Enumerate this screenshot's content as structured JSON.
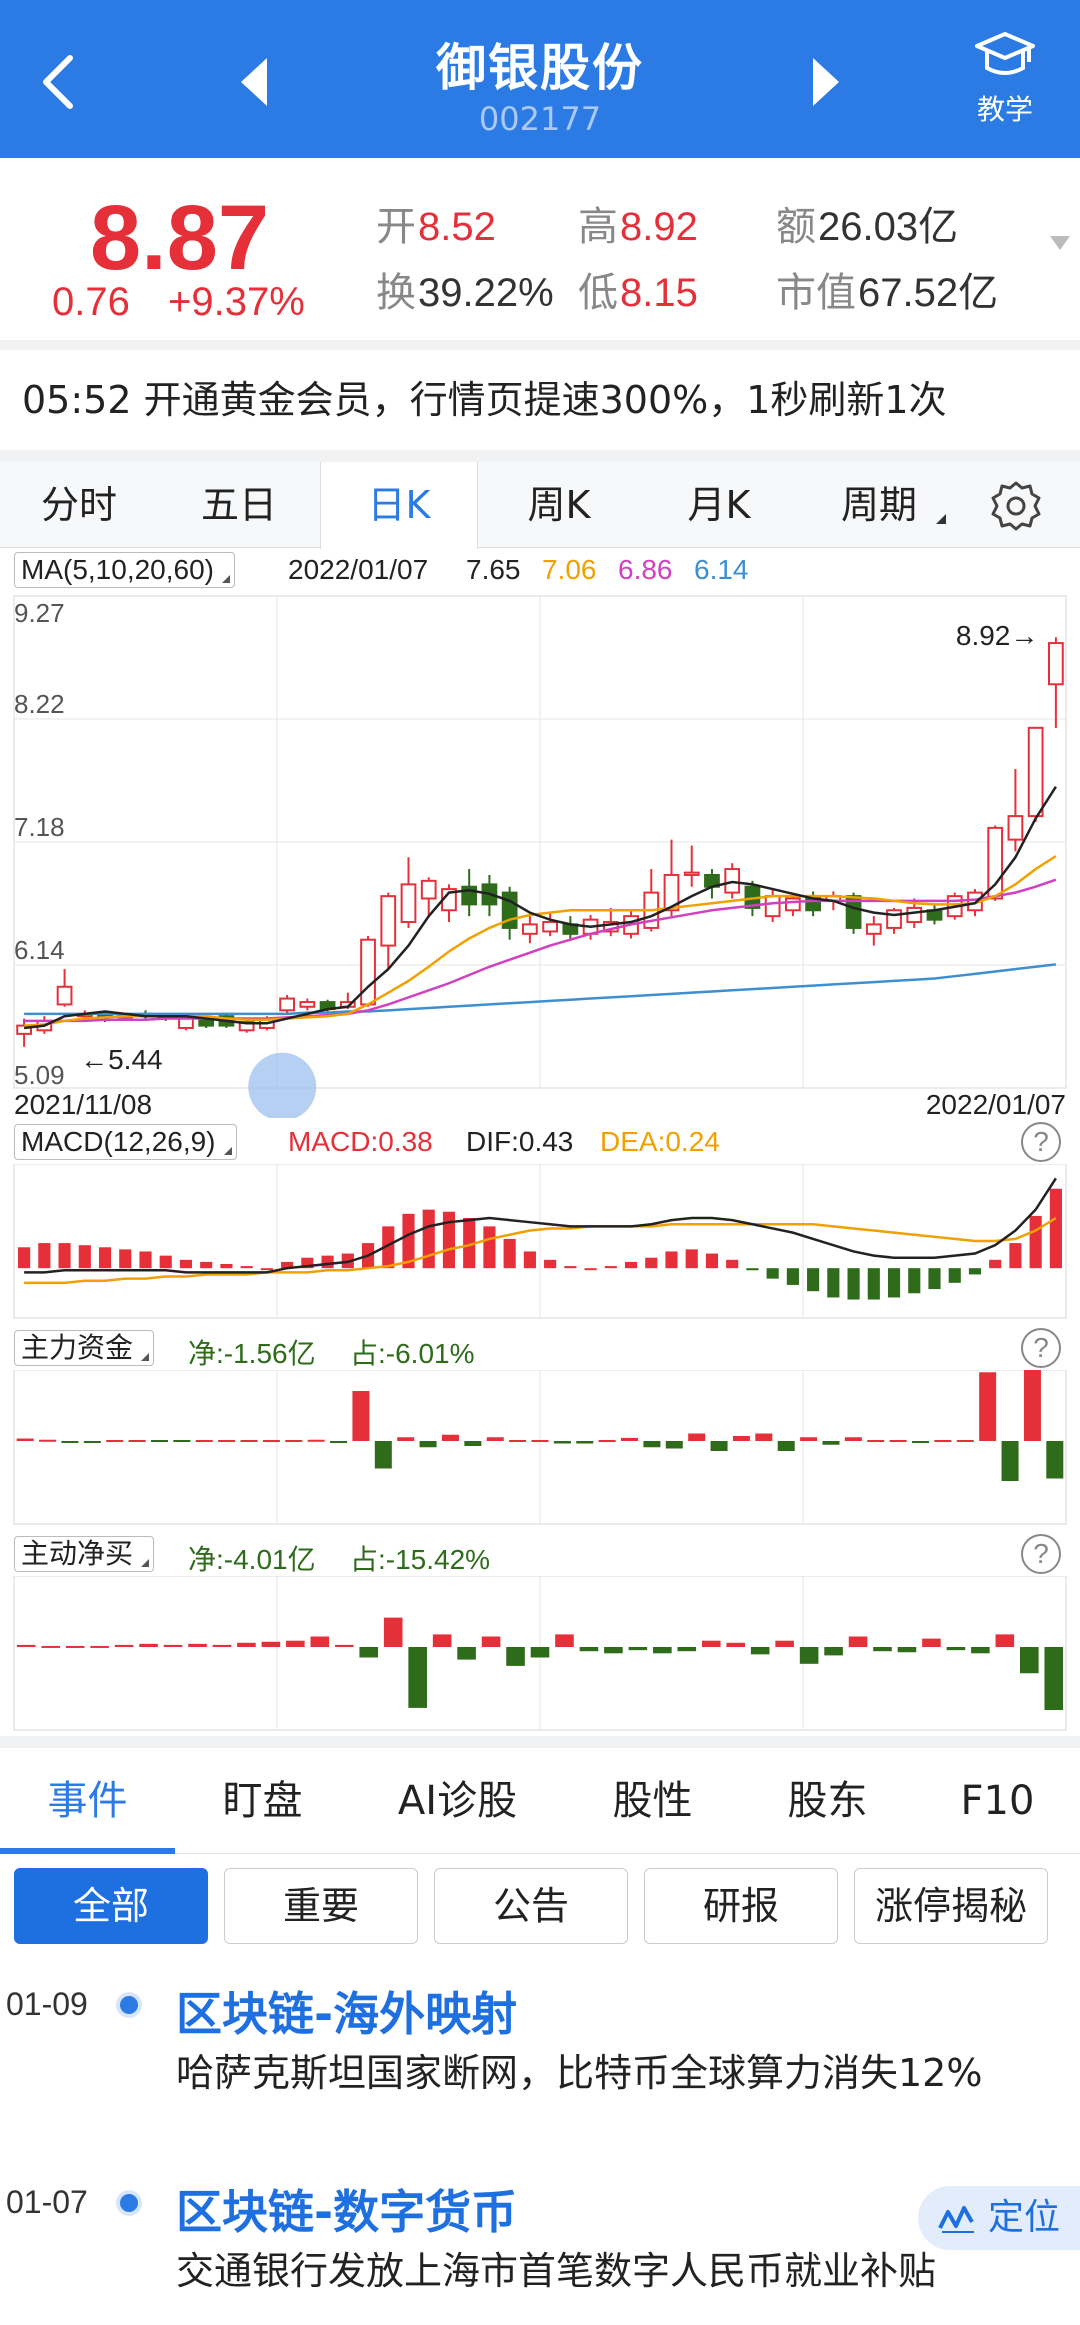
{
  "header": {
    "title": "御银股份",
    "code": "002177",
    "teach_label": "教学",
    "bg_color": "#2c7be5"
  },
  "quote": {
    "price": "8.87",
    "change": "0.76",
    "change_pct": "+9.37%",
    "open_label": "开",
    "open": "8.52",
    "high_label": "高",
    "high": "8.92",
    "amount_label": "额",
    "amount": "26.03亿",
    "turnover_label": "换",
    "turnover": "39.22%",
    "low_label": "低",
    "low": "8.15",
    "mcap_label": "市值",
    "mcap": "67.52亿"
  },
  "notice": {
    "text": "05:52  开通黄金会员，行情页提速300%，1秒刷新1次"
  },
  "chart_tabs": [
    {
      "label": "分时"
    },
    {
      "label": "五日"
    },
    {
      "label": "日K",
      "active": true
    },
    {
      "label": "周K"
    },
    {
      "label": "月K"
    },
    {
      "label": "周期"
    }
  ],
  "ma_legend": {
    "button": "MA(5,10,20,60)",
    "date": "2022/01/07",
    "ma5": "7.65",
    "ma10": "7.06",
    "ma20": "6.86",
    "ma60": "6.14"
  },
  "macd_legend": {
    "button": "MACD(12,26,9)",
    "macd": "MACD:0.38",
    "dif": "DIF:0.43",
    "dea": "DEA:0.24"
  },
  "main_fund": {
    "button": "主力资金",
    "net": "净:-1.56亿",
    "ratio": "占:-6.01%"
  },
  "active_buy": {
    "button": "主动净买",
    "net": "净:-4.01亿",
    "ratio": "占:-15.42%"
  },
  "colors": {
    "up": "#e5303a",
    "down": "#2e6b1a",
    "ma5": "#222222",
    "ma10": "#f0a000",
    "ma20": "#d040c0",
    "ma60": "#3d8fd0"
  },
  "chart_data": {
    "type": "candlestick",
    "y_ticks": [
      "9.27",
      "8.22",
      "7.18",
      "6.14",
      "5.09"
    ],
    "ylim": [
      5.09,
      9.27
    ],
    "x_labels": [
      "2021/11/08",
      "2022/01/07"
    ],
    "max_label": "8.92",
    "min_label": "5.44",
    "candles": [
      {
        "o": 5.55,
        "c": 5.62,
        "h": 5.68,
        "l": 5.44
      },
      {
        "o": 5.58,
        "c": 5.66,
        "h": 5.7,
        "l": 5.55
      },
      {
        "o": 5.8,
        "c": 5.95,
        "h": 6.1,
        "l": 5.78
      },
      {
        "o": 5.7,
        "c": 5.72,
        "h": 5.75,
        "l": 5.66
      },
      {
        "o": 5.72,
        "c": 5.7,
        "h": 5.74,
        "l": 5.65
      },
      {
        "o": 5.69,
        "c": 5.71,
        "h": 5.73,
        "l": 5.66
      },
      {
        "o": 5.72,
        "c": 5.7,
        "h": 5.75,
        "l": 5.67
      },
      {
        "o": 5.7,
        "c": 5.69,
        "h": 5.72,
        "l": 5.66
      },
      {
        "o": 5.6,
        "c": 5.68,
        "h": 5.7,
        "l": 5.58
      },
      {
        "o": 5.68,
        "c": 5.62,
        "h": 5.7,
        "l": 5.6
      },
      {
        "o": 5.7,
        "c": 5.62,
        "h": 5.72,
        "l": 5.6
      },
      {
        "o": 5.58,
        "c": 5.65,
        "h": 5.68,
        "l": 5.56
      },
      {
        "o": 5.6,
        "c": 5.68,
        "h": 5.7,
        "l": 5.58
      },
      {
        "o": 5.75,
        "c": 5.85,
        "h": 5.88,
        "l": 5.72
      },
      {
        "o": 5.78,
        "c": 5.82,
        "h": 5.85,
        "l": 5.75
      },
      {
        "o": 5.82,
        "c": 5.76,
        "h": 5.84,
        "l": 5.74
      },
      {
        "o": 5.78,
        "c": 5.82,
        "h": 5.9,
        "l": 5.76
      },
      {
        "o": 5.8,
        "c": 6.35,
        "h": 6.38,
        "l": 5.78
      },
      {
        "o": 6.3,
        "c": 6.72,
        "h": 6.75,
        "l": 6.1
      },
      {
        "o": 6.5,
        "c": 6.82,
        "h": 7.05,
        "l": 6.45
      },
      {
        "o": 6.7,
        "c": 6.85,
        "h": 6.88,
        "l": 6.55
      },
      {
        "o": 6.6,
        "c": 6.78,
        "h": 6.82,
        "l": 6.5
      },
      {
        "o": 6.8,
        "c": 6.65,
        "h": 6.95,
        "l": 6.55
      },
      {
        "o": 6.82,
        "c": 6.65,
        "h": 6.9,
        "l": 6.55
      },
      {
        "o": 6.75,
        "c": 6.45,
        "h": 6.8,
        "l": 6.35
      },
      {
        "o": 6.4,
        "c": 6.48,
        "h": 6.55,
        "l": 6.32
      },
      {
        "o": 6.42,
        "c": 6.5,
        "h": 6.58,
        "l": 6.38
      },
      {
        "o": 6.48,
        "c": 6.4,
        "h": 6.55,
        "l": 6.35
      },
      {
        "o": 6.4,
        "c": 6.52,
        "h": 6.56,
        "l": 6.35
      },
      {
        "o": 6.42,
        "c": 6.5,
        "h": 6.62,
        "l": 6.38
      },
      {
        "o": 6.4,
        "c": 6.55,
        "h": 6.6,
        "l": 6.36
      },
      {
        "o": 6.45,
        "c": 6.75,
        "h": 6.95,
        "l": 6.42
      },
      {
        "o": 6.6,
        "c": 6.9,
        "h": 7.2,
        "l": 6.55
      },
      {
        "o": 6.9,
        "c": 6.92,
        "h": 7.15,
        "l": 6.8
      },
      {
        "o": 6.9,
        "c": 6.8,
        "h": 6.95,
        "l": 6.7
      },
      {
        "o": 6.75,
        "c": 6.95,
        "h": 7.0,
        "l": 6.7
      },
      {
        "o": 6.8,
        "c": 6.62,
        "h": 6.85,
        "l": 6.55
      },
      {
        "o": 6.55,
        "c": 6.72,
        "h": 6.78,
        "l": 6.5
      },
      {
        "o": 6.6,
        "c": 6.7,
        "h": 6.75,
        "l": 6.55
      },
      {
        "o": 6.72,
        "c": 6.6,
        "h": 6.76,
        "l": 6.55
      },
      {
        "o": 6.68,
        "c": 6.72,
        "h": 6.76,
        "l": 6.6
      },
      {
        "o": 6.72,
        "c": 6.45,
        "h": 6.75,
        "l": 6.4
      },
      {
        "o": 6.4,
        "c": 6.48,
        "h": 6.55,
        "l": 6.3
      },
      {
        "o": 6.45,
        "c": 6.6,
        "h": 6.62,
        "l": 6.4
      },
      {
        "o": 6.5,
        "c": 6.62,
        "h": 6.7,
        "l": 6.45
      },
      {
        "o": 6.6,
        "c": 6.52,
        "h": 6.65,
        "l": 6.48
      },
      {
        "o": 6.55,
        "c": 6.72,
        "h": 6.75,
        "l": 6.52
      },
      {
        "o": 6.6,
        "c": 6.75,
        "h": 6.78,
        "l": 6.55
      },
      {
        "o": 6.7,
        "c": 7.3,
        "h": 7.32,
        "l": 6.68
      },
      {
        "o": 7.2,
        "c": 7.4,
        "h": 7.8,
        "l": 7.1
      },
      {
        "o": 7.4,
        "c": 8.15,
        "h": 8.15,
        "l": 7.35
      },
      {
        "o": 8.52,
        "c": 8.87,
        "h": 8.92,
        "l": 8.15
      }
    ],
    "ma5": [
      5.6,
      5.62,
      5.7,
      5.72,
      5.74,
      5.72,
      5.7,
      5.7,
      5.7,
      5.68,
      5.66,
      5.64,
      5.64,
      5.68,
      5.72,
      5.76,
      5.78,
      5.95,
      6.1,
      6.3,
      6.55,
      6.75,
      6.77,
      6.74,
      6.68,
      6.58,
      6.52,
      6.48,
      6.46,
      6.48,
      6.5,
      6.55,
      6.63,
      6.72,
      6.8,
      6.84,
      6.82,
      6.78,
      6.74,
      6.7,
      6.68,
      6.62,
      6.58,
      6.56,
      6.58,
      6.6,
      6.63,
      6.66,
      6.82,
      7.05,
      7.38,
      7.65
    ],
    "ma10": [
      5.62,
      5.63,
      5.66,
      5.68,
      5.69,
      5.7,
      5.7,
      5.7,
      5.7,
      5.7,
      5.68,
      5.67,
      5.67,
      5.68,
      5.69,
      5.7,
      5.72,
      5.8,
      5.9,
      6.0,
      6.12,
      6.25,
      6.36,
      6.45,
      6.52,
      6.56,
      6.58,
      6.6,
      6.6,
      6.6,
      6.6,
      6.6,
      6.62,
      6.64,
      6.66,
      6.68,
      6.7,
      6.72,
      6.72,
      6.72,
      6.72,
      6.71,
      6.7,
      6.68,
      6.66,
      6.65,
      6.65,
      6.66,
      6.72,
      6.82,
      6.95,
      7.06
    ],
    "ma20": [
      5.66,
      5.66,
      5.66,
      5.66,
      5.67,
      5.67,
      5.67,
      5.68,
      5.68,
      5.68,
      5.68,
      5.68,
      5.68,
      5.69,
      5.7,
      5.71,
      5.72,
      5.75,
      5.8,
      5.86,
      5.92,
      5.98,
      6.05,
      6.12,
      6.18,
      6.24,
      6.3,
      6.35,
      6.4,
      6.44,
      6.48,
      6.51,
      6.54,
      6.57,
      6.6,
      6.62,
      6.64,
      6.66,
      6.67,
      6.68,
      6.68,
      6.68,
      6.68,
      6.68,
      6.68,
      6.68,
      6.68,
      6.69,
      6.72,
      6.75,
      6.8,
      6.86
    ],
    "ma60": [
      5.72,
      5.72,
      5.72,
      5.72,
      5.72,
      5.72,
      5.72,
      5.72,
      5.72,
      5.72,
      5.72,
      5.72,
      5.72,
      5.72,
      5.73,
      5.73,
      5.74,
      5.74,
      5.75,
      5.76,
      5.77,
      5.78,
      5.79,
      5.8,
      5.81,
      5.82,
      5.83,
      5.84,
      5.85,
      5.86,
      5.87,
      5.88,
      5.89,
      5.9,
      5.91,
      5.92,
      5.93,
      5.94,
      5.95,
      5.96,
      5.97,
      5.98,
      5.99,
      6.0,
      6.01,
      6.02,
      6.04,
      6.06,
      6.08,
      6.1,
      6.12,
      6.14
    ],
    "macd": {
      "hist": [
        0.1,
        0.12,
        0.12,
        0.11,
        0.1,
        0.09,
        0.08,
        0.06,
        0.04,
        0.03,
        0.02,
        0.01,
        0.0,
        0.03,
        0.05,
        0.06,
        0.07,
        0.12,
        0.2,
        0.26,
        0.28,
        0.27,
        0.24,
        0.2,
        0.14,
        0.08,
        0.04,
        0.01,
        0.0,
        0.01,
        0.03,
        0.05,
        0.08,
        0.09,
        0.07,
        0.04,
        -0.01,
        -0.05,
        -0.08,
        -0.11,
        -0.14,
        -0.15,
        -0.15,
        -0.14,
        -0.12,
        -0.1,
        -0.07,
        -0.03,
        0.04,
        0.12,
        0.25,
        0.38
      ],
      "dif": [
        -0.02,
        -0.02,
        -0.01,
        -0.01,
        -0.01,
        -0.01,
        -0.01,
        -0.01,
        -0.02,
        -0.02,
        -0.02,
        -0.02,
        -0.02,
        0.0,
        0.01,
        0.02,
        0.03,
        0.06,
        0.11,
        0.16,
        0.2,
        0.22,
        0.23,
        0.24,
        0.23,
        0.22,
        0.21,
        0.2,
        0.2,
        0.2,
        0.2,
        0.21,
        0.23,
        0.24,
        0.24,
        0.23,
        0.21,
        0.19,
        0.17,
        0.14,
        0.11,
        0.08,
        0.06,
        0.05,
        0.05,
        0.05,
        0.06,
        0.07,
        0.11,
        0.18,
        0.28,
        0.43
      ],
      "dea": [
        -0.07,
        -0.07,
        -0.07,
        -0.06,
        -0.06,
        -0.05,
        -0.05,
        -0.04,
        -0.04,
        -0.03,
        -0.03,
        -0.03,
        -0.02,
        -0.02,
        -0.02,
        -0.01,
        -0.01,
        0.0,
        0.01,
        0.03,
        0.06,
        0.09,
        0.11,
        0.14,
        0.16,
        0.18,
        0.19,
        0.19,
        0.2,
        0.2,
        0.2,
        0.2,
        0.21,
        0.21,
        0.21,
        0.21,
        0.21,
        0.21,
        0.21,
        0.21,
        0.2,
        0.19,
        0.18,
        0.17,
        0.16,
        0.15,
        0.14,
        0.13,
        0.13,
        0.14,
        0.18,
        0.24
      ]
    },
    "main_fund_flow": [
      0.2,
      0.1,
      -0.1,
      -0.1,
      0,
      0,
      -0.05,
      -0.05,
      0,
      0,
      0.05,
      0.05,
      0.05,
      0.1,
      -0.15,
      4.0,
      -2.2,
      0.3,
      -0.5,
      0.5,
      -0.4,
      0.3,
      0,
      0,
      -0.2,
      -0.2,
      0,
      0.25,
      -0.5,
      -0.6,
      0.6,
      -0.8,
      0.4,
      0.6,
      -0.8,
      0.3,
      -0.3,
      0.3,
      0,
      0,
      -0.1,
      0,
      0,
      5.5,
      -3.2,
      5.8,
      -3.0
    ],
    "active_buy_flow": [
      0.2,
      0.1,
      0.1,
      0.1,
      0.2,
      0.3,
      0.2,
      0.3,
      0.2,
      0.4,
      0.5,
      0.6,
      1.0,
      0.2,
      -1.0,
      2.8,
      -5.8,
      1.2,
      -1.2,
      1.0,
      -1.8,
      -1.0,
      1.2,
      -0.4,
      -0.6,
      -0.3,
      -0.6,
      -0.4,
      0.6,
      0.4,
      -0.7,
      0.6,
      -1.6,
      -0.8,
      1.0,
      -0.4,
      -0.5,
      0.8,
      -0.3,
      -0.6,
      1.2,
      -2.5,
      -6.0
    ]
  },
  "bottom_tabs": [
    {
      "label": "事件",
      "active": true
    },
    {
      "label": "盯盘"
    },
    {
      "label": "AI诊股"
    },
    {
      "label": "股性"
    },
    {
      "label": "股东"
    },
    {
      "label": "F10"
    }
  ],
  "filters": [
    {
      "label": "全部",
      "active": true
    },
    {
      "label": "重要"
    },
    {
      "label": "公告"
    },
    {
      "label": "研报"
    },
    {
      "label": "涨停揭秘"
    }
  ],
  "events": [
    {
      "date": "01-09",
      "title": "区块链-海外映射",
      "desc": "哈萨克斯坦国家断网，比特币全球算力消失12%"
    },
    {
      "date": "01-07",
      "title": "区块链-数字货币",
      "desc": "交通银行发放上海市首笔数字人民币就业补贴"
    }
  ],
  "locate_label": "定位"
}
